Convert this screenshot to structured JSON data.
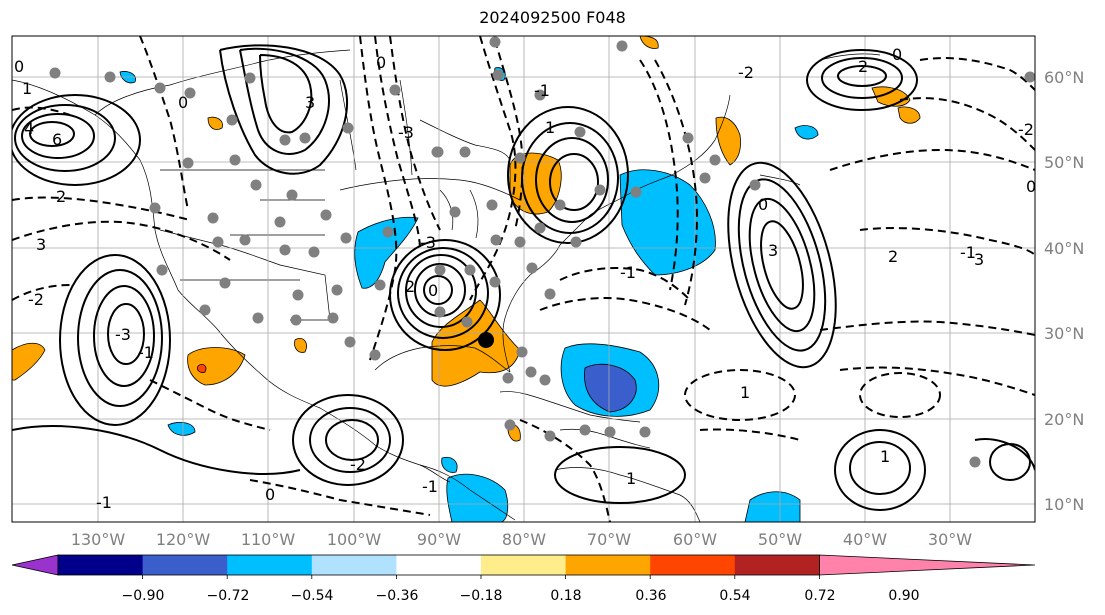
{
  "title": "2024092500 F048",
  "map": {
    "lon_labels": [
      "130°W",
      "120°W",
      "110°W",
      "100°W",
      "90°W",
      "80°W",
      "70°W",
      "60°W",
      "50°W",
      "40°W",
      "30°W"
    ],
    "lat_labels": [
      "60°N",
      "50°N",
      "40°N",
      "30°N",
      "20°N",
      "10°N"
    ],
    "label_color": "#808080"
  },
  "contour_labels": [
    "0",
    "4",
    "6",
    "2",
    "3",
    "-2",
    "-3",
    "-1",
    "1",
    "0",
    "3",
    "-3",
    "2",
    "0",
    "0",
    "1",
    "-1",
    "1",
    "-1",
    "-2",
    "-2",
    "0",
    "2",
    "3",
    "2",
    "-1",
    "0",
    "0",
    "3",
    "-3",
    "-1",
    "1",
    "0",
    "1",
    "-1",
    "-2"
  ],
  "colorbar": {
    "ticks": [
      "−0.90",
      "−0.72",
      "−0.54",
      "−0.36",
      "−0.18",
      "0.18",
      "0.36",
      "0.54",
      "0.72",
      "0.90"
    ],
    "colors": [
      "#9a32cd",
      "#00008b",
      "#3a5fcd",
      "#00bfff",
      "#b0e2ff",
      "#ffffff",
      "#ffec8b",
      "#ffa500",
      "#ff4500",
      "#b22222",
      "#ff82ab"
    ]
  }
}
